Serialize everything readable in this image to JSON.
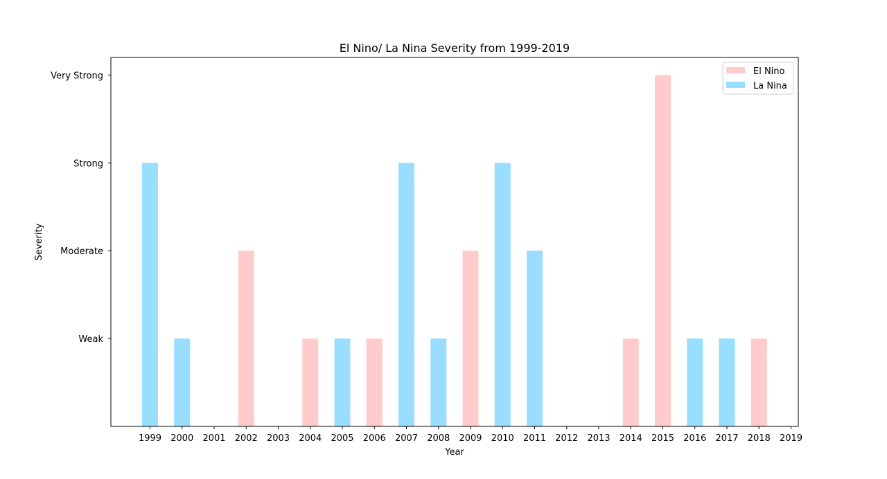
{
  "chart_data": {
    "type": "bar",
    "title": "El Nino/ La Nina Severity from 1999-2019",
    "xlabel": "Year",
    "ylabel": "Severity",
    "categories": [
      "1999",
      "2000",
      "2001",
      "2002",
      "2003",
      "2004",
      "2005",
      "2006",
      "2007",
      "2008",
      "2009",
      "2010",
      "2011",
      "2012",
      "2013",
      "2014",
      "2015",
      "2016",
      "2017",
      "2018",
      "2019"
    ],
    "y_ticks": [
      {
        "value": 1,
        "label": "Weak"
      },
      {
        "value": 2,
        "label": "Moderate"
      },
      {
        "value": 3,
        "label": "Strong"
      },
      {
        "value": 4,
        "label": "Very Strong"
      }
    ],
    "ylim": [
      0,
      4.2
    ],
    "grid": false,
    "legend_position": "top-right",
    "series": [
      {
        "name": "El Nino",
        "color": "#ffcccb",
        "values": [
          0,
          0,
          0,
          2,
          0,
          1,
          0,
          1,
          0,
          0,
          2,
          0,
          0,
          0,
          0,
          1,
          4,
          0,
          0,
          1,
          0
        ]
      },
      {
        "name": "La Nina",
        "color": "#99ddff",
        "values": [
          3,
          1,
          0,
          0,
          0,
          0,
          1,
          0,
          3,
          1,
          0,
          3,
          2,
          0,
          0,
          0,
          0,
          1,
          1,
          0,
          0
        ]
      }
    ]
  }
}
